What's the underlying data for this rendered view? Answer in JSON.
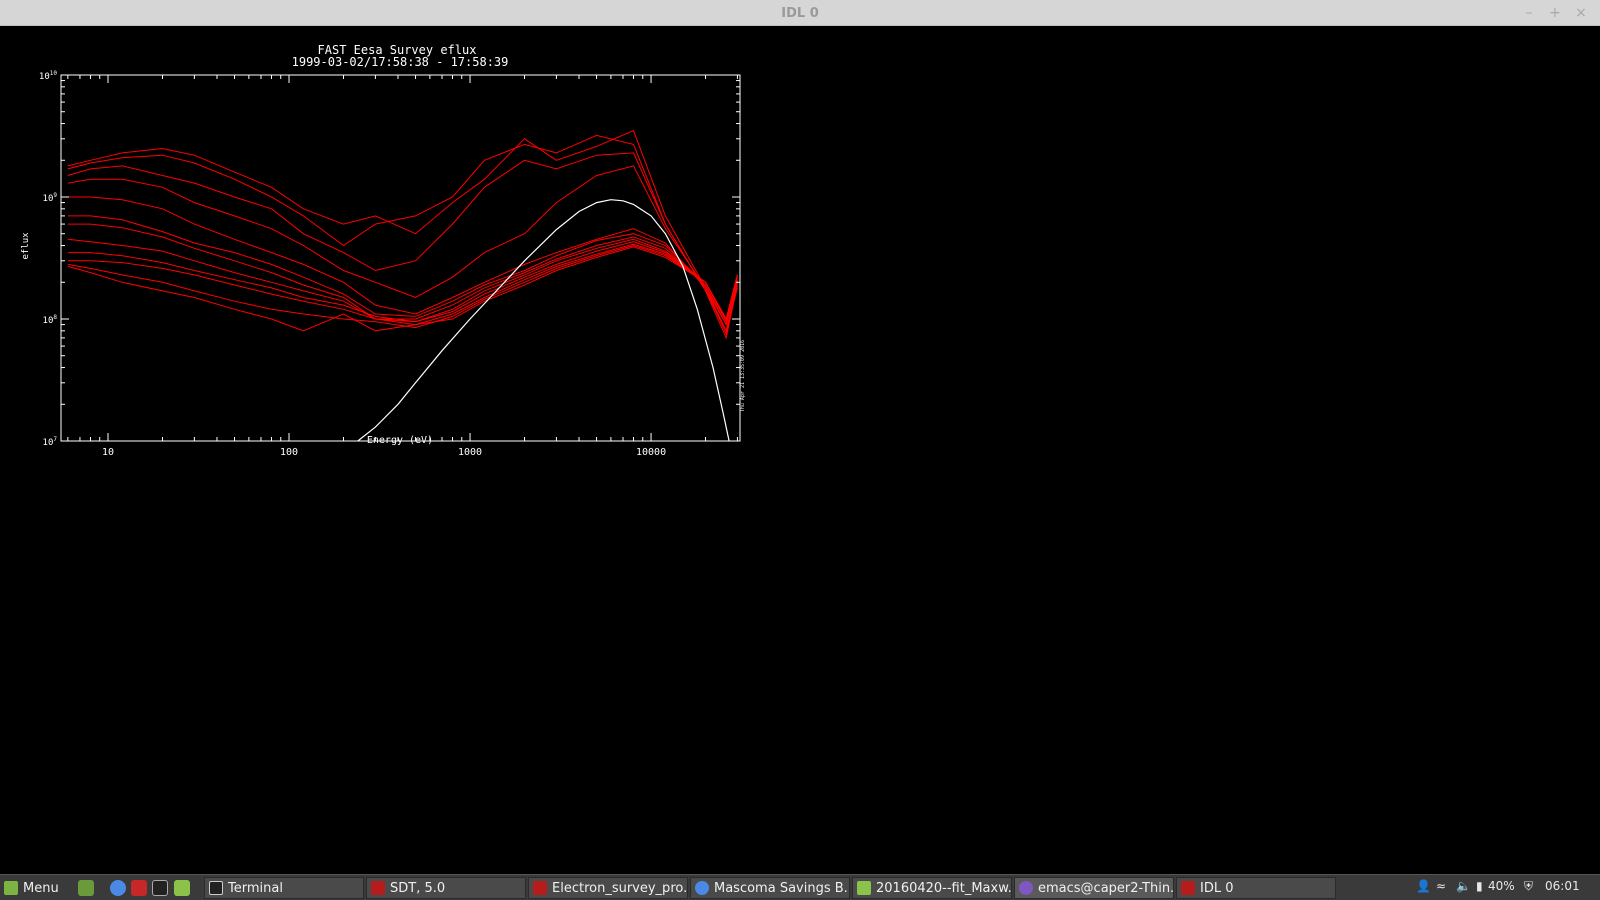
{
  "window": {
    "title": "IDL 0",
    "controls": {
      "minimize": "–",
      "maximize": "+",
      "close": "×"
    }
  },
  "plot": {
    "title": "FAST  Eesa Survey eflux",
    "subtitle": "1999-03-02/17:58:38 - 17:58:39",
    "side_label": "Thu Apr 21 13:35:09 2016"
  },
  "chart_data": {
    "type": "line",
    "title": "FAST  Eesa Survey eflux",
    "subtitle": "1999-03-02/17:58:38 - 17:58:39",
    "xlabel": "Energy  (eV)",
    "ylabel": "eflux",
    "xscale": "log",
    "yscale": "log",
    "xlim": [
      5.5,
      31000
    ],
    "ylim": [
      10000000,
      10000000000
    ],
    "x_tick_labels": [
      "10",
      "100",
      "1000",
      "10000"
    ],
    "y_tick_labels": [
      {
        "base": "10",
        "exp": "10"
      },
      {
        "base": "10",
        "exp": "9"
      },
      {
        "base": "10",
        "exp": "8"
      },
      {
        "base": "10",
        "exp": "7"
      }
    ],
    "grid": false,
    "colors": {
      "data": "#ff0000",
      "fit": "#ffffff",
      "axes": "#ffffff",
      "background": "#000000"
    },
    "x": [
      6,
      8,
      12,
      20,
      30,
      50,
      80,
      120,
      200,
      300,
      500,
      800,
      1200,
      2000,
      3000,
      5000,
      8000,
      12000,
      20000,
      26000,
      30000
    ],
    "series": [
      {
        "values": [
          1800000000,
          2000000000,
          2300000000,
          2500000000,
          2200000000,
          1600000000,
          1200000000,
          800000000,
          600000000,
          700000000,
          500000000,
          900000000,
          1400000000,
          3000000000,
          2000000000,
          2600000000,
          3500000000,
          700000000,
          180000000,
          90000000,
          200000000
        ]
      },
      {
        "values": [
          1700000000,
          1900000000,
          2100000000,
          2200000000,
          1900000000,
          1400000000,
          1000000000,
          700000000,
          400000000,
          600000000,
          700000000,
          1000000000,
          2000000000,
          2700000000,
          2300000000,
          3200000000,
          2700000000,
          600000000,
          170000000,
          80000000,
          180000000
        ]
      },
      {
        "values": [
          1500000000,
          1700000000,
          1800000000,
          1500000000,
          1300000000,
          1000000000,
          800000000,
          500000000,
          350000000,
          250000000,
          300000000,
          600000000,
          1200000000,
          2000000000,
          1700000000,
          2200000000,
          2300000000,
          600000000,
          170000000,
          70000000,
          190000000
        ]
      },
      {
        "values": [
          1300000000,
          1400000000,
          1400000000,
          1200000000,
          900000000,
          700000000,
          550000000,
          400000000,
          250000000,
          200000000,
          150000000,
          220000000,
          350000000,
          500000000,
          900000000,
          1500000000,
          1800000000,
          550000000,
          180000000,
          75000000,
          200000000
        ]
      },
      {
        "values": [
          1000000000,
          1000000000,
          950000000,
          800000000,
          600000000,
          450000000,
          350000000,
          280000000,
          200000000,
          130000000,
          110000000,
          150000000,
          200000000,
          280000000,
          350000000,
          450000000,
          550000000,
          420000000,
          180000000,
          80000000,
          200000000
        ]
      },
      {
        "values": [
          700000000,
          700000000,
          650000000,
          520000000,
          420000000,
          350000000,
          280000000,
          220000000,
          160000000,
          110000000,
          105000000,
          140000000,
          190000000,
          250000000,
          330000000,
          440000000,
          500000000,
          400000000,
          190000000,
          90000000,
          210000000
        ]
      },
      {
        "values": [
          600000000,
          600000000,
          560000000,
          470000000,
          380000000,
          300000000,
          240000000,
          190000000,
          150000000,
          100000000,
          100000000,
          130000000,
          180000000,
          240000000,
          310000000,
          400000000,
          470000000,
          380000000,
          190000000,
          90000000,
          210000000
        ]
      },
      {
        "values": [
          450000000,
          430000000,
          400000000,
          360000000,
          300000000,
          240000000,
          200000000,
          170000000,
          140000000,
          100000000,
          95000000,
          120000000,
          170000000,
          230000000,
          300000000,
          380000000,
          450000000,
          360000000,
          200000000,
          95000000,
          220000000
        ]
      },
      {
        "values": [
          350000000,
          350000000,
          330000000,
          290000000,
          250000000,
          210000000,
          180000000,
          150000000,
          130000000,
          105000000,
          95000000,
          115000000,
          160000000,
          220000000,
          280000000,
          360000000,
          430000000,
          350000000,
          200000000,
          100000000,
          230000000
        ]
      },
      {
        "values": [
          300000000,
          300000000,
          290000000,
          260000000,
          230000000,
          190000000,
          160000000,
          140000000,
          120000000,
          100000000,
          90000000,
          110000000,
          150000000,
          210000000,
          270000000,
          340000000,
          410000000,
          340000000,
          200000000,
          100000000,
          230000000
        ]
      },
      {
        "values": [
          280000000,
          260000000,
          230000000,
          200000000,
          170000000,
          140000000,
          120000000,
          110000000,
          100000000,
          95000000,
          85000000,
          105000000,
          145000000,
          200000000,
          260000000,
          330000000,
          400000000,
          330000000,
          200000000,
          100000000,
          230000000
        ]
      },
      {
        "values": [
          270000000,
          240000000,
          200000000,
          170000000,
          150000000,
          120000000,
          100000000,
          80000000,
          110000000,
          80000000,
          90000000,
          100000000,
          140000000,
          190000000,
          250000000,
          320000000,
          390000000,
          320000000,
          200000000,
          100000000,
          230000000
        ]
      }
    ],
    "fit": {
      "x": [
        240,
        300,
        400,
        500,
        700,
        1000,
        1500,
        2000,
        3000,
        4000,
        5000,
        6000,
        7000,
        8000,
        10000,
        12000,
        15000,
        18000,
        22000,
        25000,
        27000
      ],
      "values": [
        10000000,
        13000000,
        20000000,
        30000000,
        55000000,
        100000000,
        190000000,
        300000000,
        540000000,
        760000000,
        900000000,
        950000000,
        930000000,
        870000000,
        700000000,
        500000000,
        270000000,
        120000000,
        40000000,
        17000000,
        10000000
      ]
    }
  },
  "taskbar": {
    "menu_label": "Menu",
    "launchers": [
      "desktop-icon",
      "chrome-icon",
      "app-icon",
      "terminal-icon",
      "folder-icon"
    ],
    "windows": [
      {
        "label": "Terminal",
        "icon": "terminal-icon"
      },
      {
        "label": "SDT, 5.0",
        "icon": "idl-icon"
      },
      {
        "label": "Electron_survey_pro...",
        "icon": "idl-icon"
      },
      {
        "label": "Mascoma Savings B...",
        "icon": "chrome-icon"
      },
      {
        "label": "20160420--fit_Maxw...",
        "icon": "folder-icon"
      },
      {
        "label": "emacs@caper2-Thin...",
        "icon": "emacs-icon"
      },
      {
        "label": "IDL 0",
        "icon": "idl-icon"
      }
    ],
    "tray": {
      "battery": "40%",
      "clock": "06:01"
    }
  }
}
